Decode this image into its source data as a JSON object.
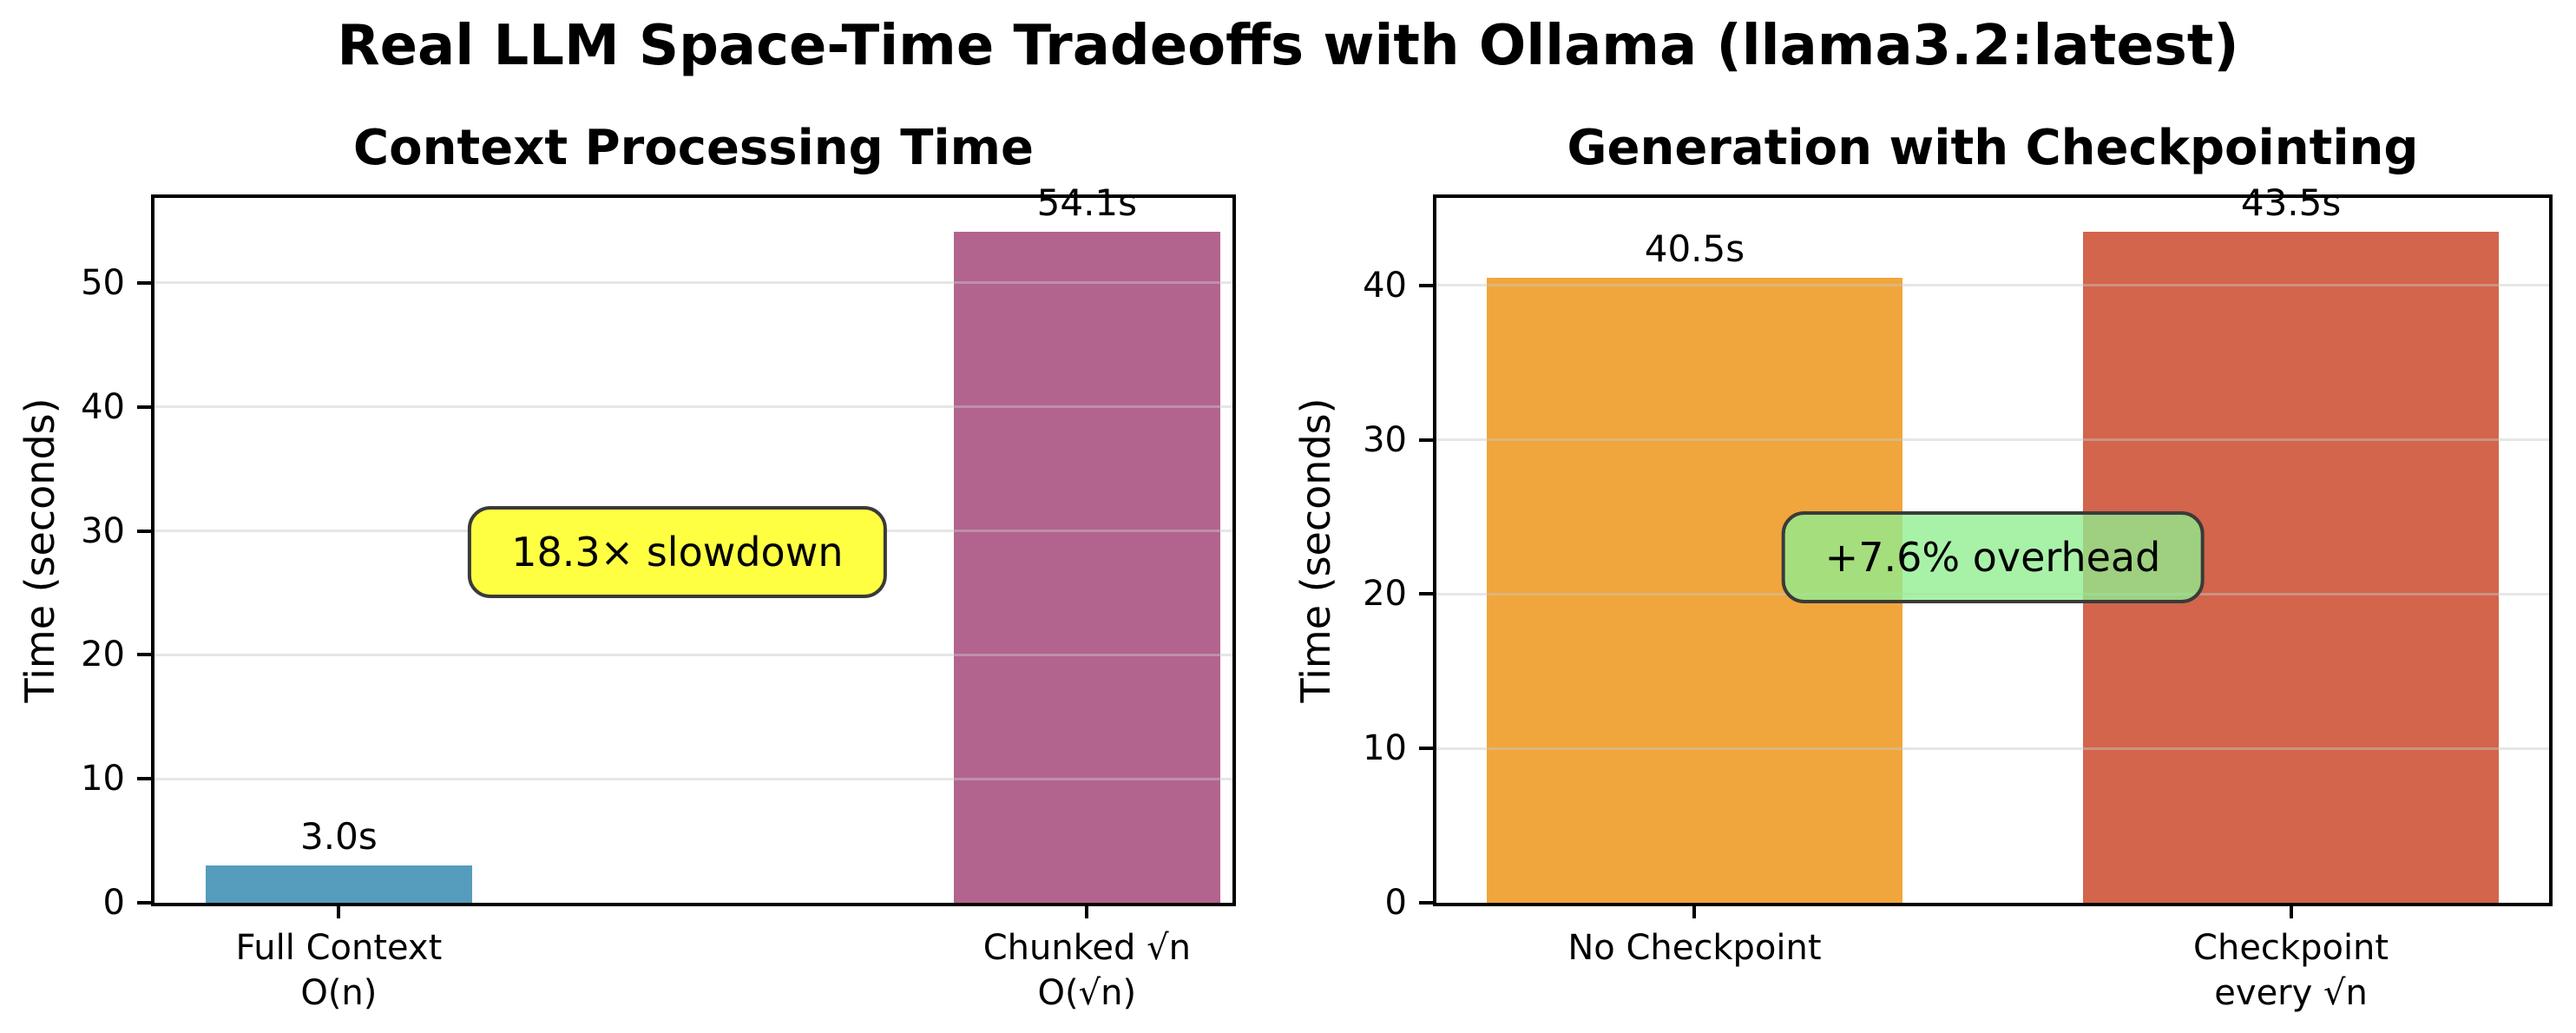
{
  "figure": {
    "title": "Real LLM Space-Time Tradeoffs with Ollama (llama3.2:latest)"
  },
  "chart_data": [
    {
      "type": "bar",
      "title": "Context Processing Time",
      "ylabel": "Time (seconds)",
      "categories": [
        "Full Context\nO(n)",
        "Chunked √n\nO(√n)"
      ],
      "values": [
        3.0,
        54.1
      ],
      "bar_labels": [
        "3.0s",
        "54.1s"
      ],
      "bar_colors": [
        "#569CBC",
        "#B2648E"
      ],
      "yticks": [
        0,
        10,
        20,
        30,
        40,
        50
      ],
      "ylim": [
        0,
        56.85
      ],
      "grid": true,
      "legend": "none",
      "annotation": {
        "text": "18.3× slowdown",
        "bg": "#FFFF42",
        "bg_alpha": 1,
        "border": "#3a3a3a",
        "x_frac": 0.485,
        "y_value": 28.3
      }
    },
    {
      "type": "bar",
      "title": "Generation with Checkpointing",
      "ylabel": "Time (seconds)",
      "categories": [
        "No Checkpoint",
        "Checkpoint\nevery √n"
      ],
      "values": [
        40.5,
        43.5
      ],
      "bar_labels": [
        "40.5s",
        "43.5s"
      ],
      "bar_colors": [
        "#F0A63C",
        "#D2654B"
      ],
      "yticks": [
        0,
        10,
        20,
        30,
        40
      ],
      "ylim": [
        0,
        45.675
      ],
      "grid": true,
      "legend": "none",
      "annotation": {
        "text": "+7.6% overhead",
        "bg": "#90EE90",
        "bg_alpha": 0.78,
        "border": "#3a3a3a",
        "x_frac": 0.5,
        "y_value": 22.4
      }
    }
  ]
}
